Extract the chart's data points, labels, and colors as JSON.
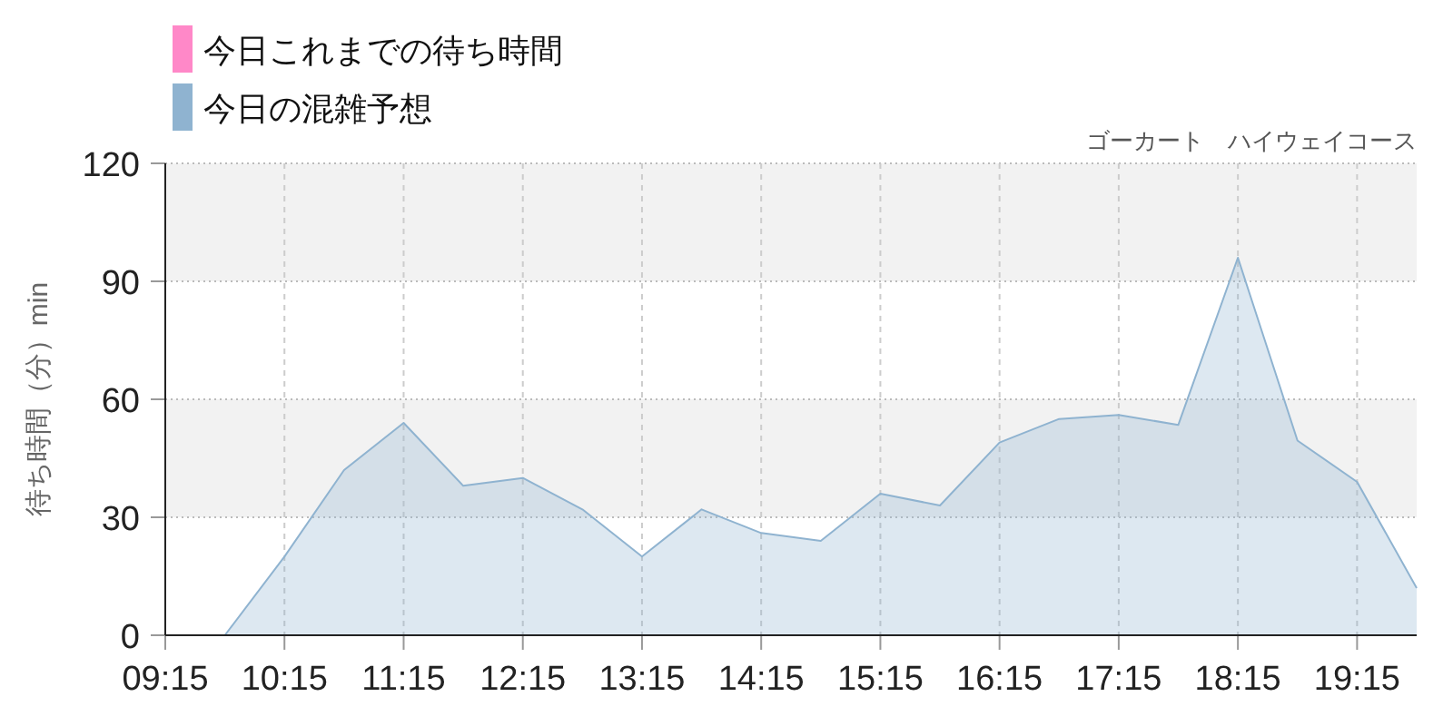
{
  "chart_data": {
    "type": "area",
    "title": "ゴーカート　ハイウェイコース",
    "ylabel": "待ち時間（分）min",
    "x": [
      9.25,
      9.75,
      10.25,
      10.75,
      11.25,
      11.75,
      12.25,
      12.75,
      13.25,
      13.75,
      14.25,
      14.75,
      15.25,
      15.75,
      16.25,
      16.75,
      17.25,
      17.75,
      18.25,
      18.75,
      19.25,
      19.75
    ],
    "series": [
      {
        "name": "今日これまでの待ち時間",
        "color": "#ff88c8",
        "values": [
          null,
          null,
          null,
          null,
          null,
          null,
          null,
          null,
          null,
          null,
          null,
          null,
          null,
          null,
          null,
          null,
          null,
          null,
          null,
          null,
          null,
          null
        ]
      },
      {
        "name": "今日の混雑予想",
        "color": "#8fb3d0",
        "values": [
          0,
          0,
          20,
          42,
          54,
          38,
          40,
          32,
          20,
          32,
          26,
          24,
          36,
          33,
          49,
          55,
          56,
          53.5,
          96,
          49.5,
          39,
          12
        ]
      }
    ],
    "xlim": [
      9.25,
      19.75
    ],
    "ylim": [
      0,
      120
    ],
    "xticks": [
      {
        "value": 9.25,
        "label": "09:15"
      },
      {
        "value": 10.25,
        "label": "10:15"
      },
      {
        "value": 11.25,
        "label": "11:15"
      },
      {
        "value": 12.25,
        "label": "12:15"
      },
      {
        "value": 13.25,
        "label": "13:15"
      },
      {
        "value": 14.25,
        "label": "14:15"
      },
      {
        "value": 15.25,
        "label": "15:15"
      },
      {
        "value": 16.25,
        "label": "16:15"
      },
      {
        "value": 17.25,
        "label": "17:15"
      },
      {
        "value": 18.25,
        "label": "18:15"
      },
      {
        "value": 19.25,
        "label": "19:15"
      }
    ],
    "yticks": [
      0,
      30,
      60,
      90,
      120
    ],
    "bands": [
      {
        "axis": "y",
        "from": 30,
        "to": 60,
        "color": "#f2f2f2"
      },
      {
        "axis": "y",
        "from": 90,
        "to": 120,
        "color": "#f2f2f2"
      }
    ],
    "grid": true,
    "legend": "top left"
  }
}
